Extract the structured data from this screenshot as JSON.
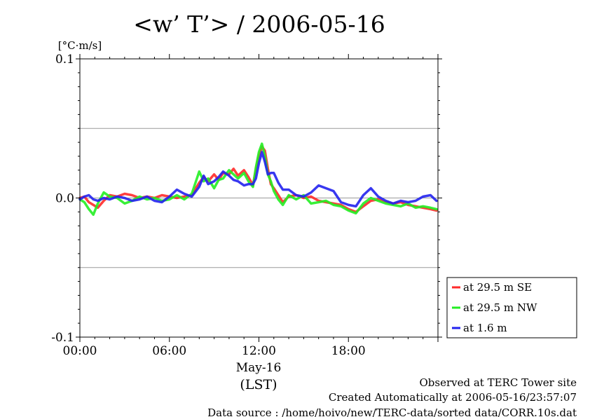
{
  "chart_data": {
    "type": "line",
    "title": "<w’ T’> / 2006-05-16",
    "ylabel": "[°C·m/s]",
    "ylim": [
      -0.1,
      0.1
    ],
    "yticks": [
      {
        "value": 0.1,
        "label": "0.1"
      },
      {
        "value": 0.0,
        "label": "0.0"
      },
      {
        "value": -0.1,
        "label": "-0.1"
      }
    ],
    "grid_y": [
      -0.05,
      0.05
    ],
    "xlim": [
      0,
      24
    ],
    "xticks": [
      {
        "value": 0,
        "label": "00:00"
      },
      {
        "value": 6,
        "label": "06:00"
      },
      {
        "value": 12,
        "label": "12:00"
      },
      {
        "value": 18,
        "label": "18:00"
      }
    ],
    "xlabel_date": "May-16",
    "xlabel": "(LST)",
    "legend_position": "right-bottom",
    "series": [
      {
        "name": "at 29.5 m SE",
        "color": "#ff2a2a",
        "x": [
          0,
          0.3,
          0.6,
          0.9,
          1.2,
          1.6,
          2.0,
          2.5,
          3.0,
          3.5,
          4.0,
          4.5,
          5.0,
          5.5,
          6.0,
          6.5,
          7.0,
          7.5,
          8.0,
          8.3,
          8.6,
          9.0,
          9.3,
          9.6,
          10.0,
          10.3,
          10.6,
          11.0,
          11.3,
          11.6,
          11.8,
          12.0,
          12.2,
          12.4,
          12.6,
          12.8,
          13.0,
          13.3,
          13.6,
          14.0,
          14.5,
          15.0,
          15.5,
          16.0,
          16.5,
          17.0,
          17.5,
          18.0,
          18.5,
          19.0,
          19.5,
          20.0,
          20.5,
          21.0,
          21.5,
          22.0,
          22.5,
          23.0,
          23.5,
          23.9
        ],
        "y": [
          0.0,
          0.001,
          -0.003,
          -0.005,
          -0.007,
          -0.002,
          0.002,
          0.001,
          0.003,
          0.002,
          0.0,
          0.001,
          0.0,
          0.002,
          0.001,
          0.0,
          0.001,
          0.002,
          0.011,
          0.015,
          0.012,
          0.017,
          0.013,
          0.018,
          0.017,
          0.021,
          0.016,
          0.02,
          0.015,
          0.009,
          0.021,
          0.03,
          0.037,
          0.034,
          0.021,
          0.01,
          0.007,
          0.002,
          -0.003,
          0.001,
          0.002,
          0.0,
          0.001,
          -0.002,
          -0.003,
          -0.004,
          -0.005,
          -0.008,
          -0.01,
          -0.006,
          -0.002,
          -0.001,
          -0.003,
          -0.004,
          -0.003,
          -0.005,
          -0.006,
          -0.007,
          -0.008,
          -0.009
        ]
      },
      {
        "name": "at 29.5 m NW",
        "color": "#22ee22",
        "x": [
          0,
          0.3,
          0.6,
          0.9,
          1.2,
          1.6,
          2.0,
          2.5,
          3.0,
          3.5,
          4.0,
          4.5,
          5.0,
          5.5,
          6.0,
          6.5,
          7.0,
          7.5,
          8.0,
          8.3,
          8.6,
          9.0,
          9.3,
          9.6,
          10.0,
          10.3,
          10.6,
          11.0,
          11.3,
          11.6,
          11.8,
          12.0,
          12.2,
          12.4,
          12.6,
          12.8,
          13.0,
          13.3,
          13.6,
          14.0,
          14.5,
          15.0,
          15.5,
          16.0,
          16.5,
          17.0,
          17.5,
          18.0,
          18.5,
          19.0,
          19.5,
          20.0,
          20.5,
          21.0,
          21.5,
          22.0,
          22.5,
          23.0,
          23.5,
          23.9
        ],
        "y": [
          -0.001,
          -0.003,
          -0.008,
          -0.012,
          -0.004,
          0.004,
          0.001,
          0.0,
          -0.004,
          -0.002,
          0.001,
          -0.001,
          0.0,
          -0.002,
          -0.001,
          0.002,
          -0.001,
          0.003,
          0.019,
          0.012,
          0.014,
          0.007,
          0.013,
          0.014,
          0.02,
          0.017,
          0.014,
          0.018,
          0.012,
          0.008,
          0.022,
          0.033,
          0.039,
          0.03,
          0.017,
          0.012,
          0.005,
          -0.001,
          -0.005,
          0.002,
          -0.001,
          0.002,
          -0.004,
          -0.003,
          -0.002,
          -0.005,
          -0.006,
          -0.009,
          -0.011,
          -0.004,
          0.0,
          -0.002,
          -0.004,
          -0.005,
          -0.006,
          -0.004,
          -0.007,
          -0.006,
          -0.007,
          -0.008
        ]
      },
      {
        "name": "at 1.6 m",
        "color": "#2222ee",
        "x": [
          0,
          0.3,
          0.6,
          0.9,
          1.2,
          1.6,
          2.0,
          2.5,
          3.0,
          3.5,
          4.0,
          4.5,
          5.0,
          5.5,
          6.0,
          6.5,
          7.0,
          7.5,
          8.0,
          8.3,
          8.6,
          9.0,
          9.3,
          9.6,
          10.0,
          10.3,
          10.6,
          11.0,
          11.3,
          11.6,
          11.8,
          12.0,
          12.2,
          12.4,
          12.6,
          12.8,
          13.0,
          13.3,
          13.6,
          14.0,
          14.5,
          15.0,
          15.5,
          16.0,
          16.5,
          17.0,
          17.5,
          18.0,
          18.5,
          19.0,
          19.5,
          20.0,
          20.5,
          21.0,
          21.5,
          22.0,
          22.5,
          23.0,
          23.5,
          23.9
        ],
        "y": [
          -0.001,
          0.001,
          0.002,
          -0.001,
          -0.002,
          0.0,
          -0.001,
          0.001,
          0.0,
          -0.002,
          -0.001,
          0.001,
          -0.002,
          -0.003,
          0.001,
          0.006,
          0.003,
          0.001,
          0.008,
          0.016,
          0.01,
          0.012,
          0.015,
          0.019,
          0.016,
          0.013,
          0.012,
          0.009,
          0.01,
          0.01,
          0.014,
          0.025,
          0.033,
          0.026,
          0.017,
          0.018,
          0.018,
          0.011,
          0.006,
          0.006,
          0.002,
          0.001,
          0.004,
          0.009,
          0.007,
          0.005,
          -0.003,
          -0.005,
          -0.006,
          0.002,
          0.007,
          0.001,
          -0.002,
          -0.004,
          -0.002,
          -0.003,
          -0.002,
          0.001,
          0.002,
          -0.002
        ]
      }
    ]
  },
  "footer": {
    "line1": "Observed at TERC Tower site",
    "line2": "Created Automatically at 2006-05-16/23:57:07",
    "line3": "Data source : /home/hoivo/new/TERC-data/sorted  data/CORR.10s.dat"
  }
}
